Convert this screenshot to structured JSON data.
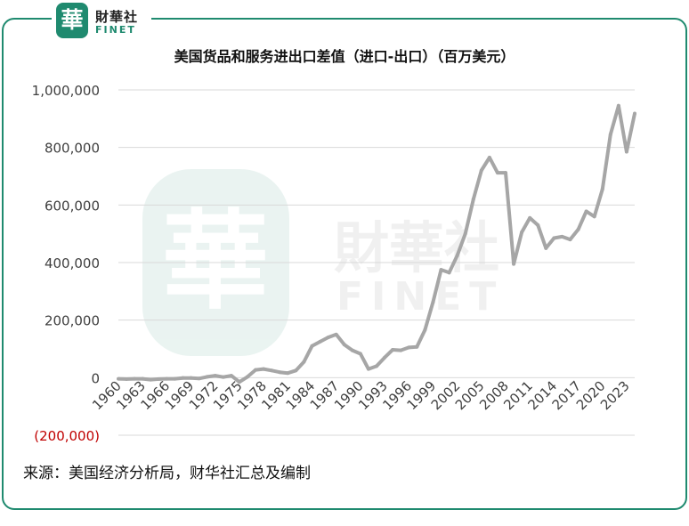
{
  "header": {
    "logo_cn": "財華社",
    "logo_en": "FINET",
    "logo_seal": "華"
  },
  "source_note": "来源：美国经济分析局，财华社汇总及编制",
  "colors": {
    "brand": "#1f8a6f",
    "line": "#a6a6a6",
    "negative": "#c00000",
    "grid": "#d9d9d9"
  },
  "chart_data": {
    "type": "line",
    "title": "美国货品和服务进出口差值（进口-出口）（百万美元）",
    "xlabel": "",
    "ylabel": "",
    "ylim": [
      -200000,
      1000000
    ],
    "y_ticks": [
      {
        "value": 1000000,
        "label": "1,000,000"
      },
      {
        "value": 800000,
        "label": "800,000"
      },
      {
        "value": 600000,
        "label": "600,000"
      },
      {
        "value": 400000,
        "label": "400,000"
      },
      {
        "value": 200000,
        "label": "200,000"
      },
      {
        "value": 0,
        "label": "0"
      },
      {
        "value": -200000,
        "label": "(200,000)"
      }
    ],
    "x_tick_labels": [
      "1960",
      "1963",
      "1966",
      "1969",
      "1972",
      "1975",
      "1978",
      "1981",
      "1984",
      "1987",
      "1990",
      "1993",
      "1996",
      "1999",
      "2002",
      "2005",
      "2008",
      "2011",
      "2014",
      "2017",
      "2020",
      "2023"
    ],
    "grid": true,
    "legend": "none",
    "x": [
      1960,
      1961,
      1962,
      1963,
      1964,
      1965,
      1966,
      1967,
      1968,
      1969,
      1970,
      1971,
      1972,
      1973,
      1974,
      1975,
      1976,
      1977,
      1978,
      1979,
      1980,
      1981,
      1982,
      1983,
      1984,
      1985,
      1986,
      1987,
      1988,
      1989,
      1990,
      1991,
      1992,
      1993,
      1994,
      1995,
      1996,
      1997,
      1998,
      1999,
      2000,
      2001,
      2002,
      2003,
      2004,
      2005,
      2006,
      2007,
      2008,
      2009,
      2010,
      2011,
      2012,
      2013,
      2014,
      2015,
      2016,
      2017,
      2018,
      2019,
      2020,
      2021,
      2022,
      2023,
      2024
    ],
    "series": [
      {
        "values": [
          -4000,
          -5000,
          -4000,
          -4000,
          -7000,
          -5000,
          -4000,
          -4000,
          -1000,
          -1000,
          -3000,
          3000,
          7000,
          2000,
          7000,
          -15000,
          3000,
          27000,
          30000,
          25000,
          19000,
          16000,
          25000,
          55000,
          110000,
          125000,
          140000,
          150000,
          115000,
          95000,
          83000,
          30000,
          40000,
          70000,
          97000,
          95000,
          105000,
          107000,
          166000,
          262000,
          375000,
          365000,
          424000,
          500000,
          620000,
          720000,
          765000,
          712000,
          712000,
          395000,
          505000,
          555000,
          530000,
          450000,
          485000,
          490000,
          480000,
          515000,
          578000,
          560000,
          655000,
          845000,
          945000,
          785000,
          918000
        ]
      }
    ]
  }
}
